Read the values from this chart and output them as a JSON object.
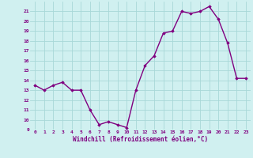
{
  "x": [
    0,
    1,
    2,
    3,
    4,
    5,
    6,
    7,
    8,
    9,
    10,
    11,
    12,
    13,
    14,
    15,
    16,
    17,
    18,
    19,
    20,
    21,
    22,
    23
  ],
  "y": [
    13.5,
    13.0,
    13.5,
    13.8,
    13.0,
    13.0,
    11.0,
    9.5,
    9.8,
    9.5,
    9.2,
    13.0,
    15.5,
    16.5,
    18.8,
    19.0,
    21.0,
    20.8,
    21.0,
    21.5,
    20.2,
    17.8,
    14.2,
    14.2
  ],
  "xlabel": "Windchill (Refroidissement éolien,°C)",
  "ylim": [
    9,
    22
  ],
  "yticks": [
    9,
    10,
    11,
    12,
    13,
    14,
    15,
    16,
    17,
    18,
    19,
    20,
    21
  ],
  "xlim": [
    -0.5,
    23.5
  ],
  "xticks": [
    0,
    1,
    2,
    3,
    4,
    5,
    6,
    7,
    8,
    9,
    10,
    11,
    12,
    13,
    14,
    15,
    16,
    17,
    18,
    19,
    20,
    21,
    22,
    23
  ],
  "line_color": "#800080",
  "marker_color": "#800080",
  "bg_color": "#d0f0f0",
  "grid_color": "#a8d8d8",
  "tick_label_color": "#800080",
  "axis_label_color": "#800080",
  "marker": "D",
  "markersize": 1.8,
  "linewidth": 1.0
}
